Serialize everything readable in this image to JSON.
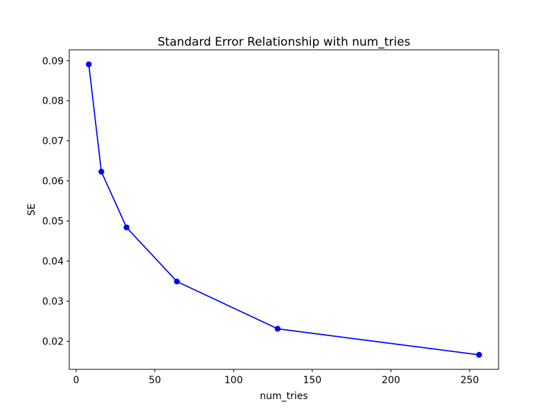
{
  "figure": {
    "background": "#ffffff"
  },
  "chart_data": {
    "type": "line",
    "title": "Standard Error Relationship with num_tries",
    "xlabel": "num_tries",
    "ylabel": "SE",
    "series": [
      {
        "name": "SE",
        "x": [
          8,
          16,
          32,
          64,
          128,
          256
        ],
        "y": [
          0.0891,
          0.0623,
          0.0484,
          0.0349,
          0.0231,
          0.0166
        ],
        "color": "#0000ff",
        "marker": "circle"
      }
    ],
    "x_ticks": [
      0,
      50,
      100,
      150,
      200,
      250
    ],
    "x_tick_labels": [
      "0",
      "50",
      "100",
      "150",
      "200",
      "250"
    ],
    "y_ticks": [
      0.02,
      0.03,
      0.04,
      0.05,
      0.06,
      0.07,
      0.08,
      0.09
    ],
    "y_tick_labels": [
      "0.02",
      "0.03",
      "0.04",
      "0.05",
      "0.06",
      "0.07",
      "0.08",
      "0.09"
    ],
    "xlim": [
      -4.4,
      268.4
    ],
    "ylim": [
      0.012975,
      0.092725
    ],
    "grid": false,
    "legend": "none",
    "spine_color": "#000000"
  }
}
